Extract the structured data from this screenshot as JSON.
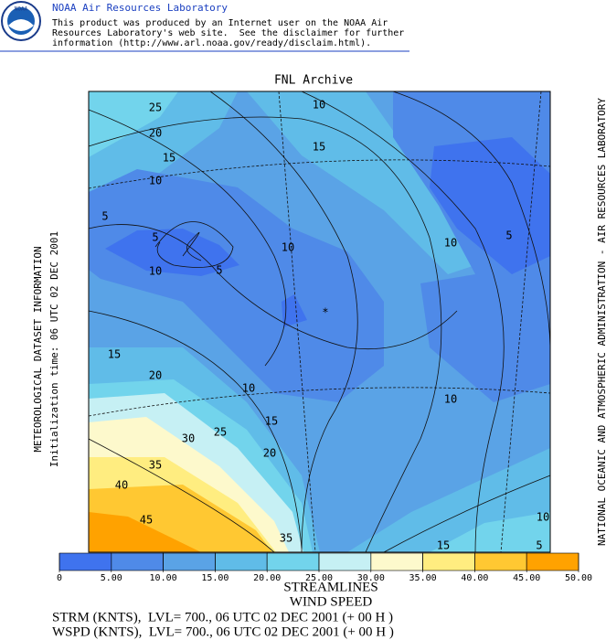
{
  "header": {
    "logo_text": "NOAA",
    "title": "NOAA Air Resources Laboratory",
    "lines": [
      "This product was produced by an Internet user on the NOAA Air",
      "Resources Laboratory's web site.  See the disclaimer for further",
      "information (http://www.arl.noaa.gov/ready/disclaim.html)."
    ]
  },
  "map": {
    "title": "FNL Archive",
    "left_labels": [
      "METEOROLOGICAL DATASET INFORMATION",
      "Initialization time: 06 UTC 02 DEC 2001"
    ],
    "right_label": "NATIONAL OCEANIC AND ATMOSPHERIC ADMINISTRATION - AIR RESOURCES LABORATORY",
    "contour_labels": [
      25,
      20,
      15,
      10,
      5,
      5,
      5,
      10,
      10,
      15,
      10,
      10,
      5,
      15,
      20,
      10,
      15,
      25,
      30,
      20,
      10,
      35,
      40,
      45,
      35,
      15,
      10,
      5
    ],
    "source_marker": "*"
  },
  "colorbar": {
    "colors": [
      "#3f73ee",
      "#4f8ae8",
      "#5aa3e6",
      "#60bce8",
      "#72d4ec",
      "#c6f0f4",
      "#fdf9cc",
      "#ffed80",
      "#ffc832",
      "#ffa200"
    ],
    "ticks": [
      0,
      {
        "value": 5,
        "label": "5.00"
      },
      {
        "value": 10,
        "label": "10.00"
      },
      {
        "value": 15,
        "label": "15.00"
      },
      {
        "value": 20,
        "label": "20.00"
      },
      {
        "value": 25,
        "label": "25.00"
      },
      {
        "value": 30,
        "label": "30.00"
      },
      {
        "value": 35,
        "label": "35.00"
      },
      {
        "value": 40,
        "label": "40.00"
      },
      {
        "value": 45,
        "label": "45.00"
      },
      {
        "value": 50,
        "label": "50.00"
      }
    ]
  },
  "footer": [
    "STREAMLINES",
    "WIND SPEED",
    "STRM (KNTS),  LVL= 700., 06 UTC 02 DEC 2001 (+ 00 H )",
    "WSPD (KNTS),  LVL= 700., 06 UTC 02 DEC 2001 (+ 00 H )"
  ]
}
